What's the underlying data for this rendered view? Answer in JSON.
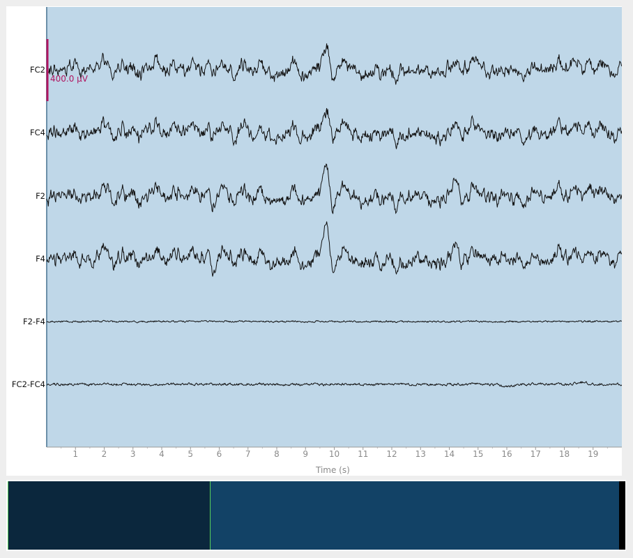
{
  "plot": {
    "background": "#bfd7e8",
    "trace_color": "#111111",
    "scalebar_color": "#b01560",
    "scalebar_label": "400.0 µV",
    "xlabel": "Time (s)",
    "xticks": [
      "1",
      "2",
      "3",
      "4",
      "5",
      "6",
      "7",
      "8",
      "9",
      "10",
      "11",
      "12",
      "13",
      "14",
      "15",
      "16",
      "17",
      "18",
      "19"
    ]
  },
  "channels": [
    {
      "name": "FC2"
    },
    {
      "name": "FC4"
    },
    {
      "name": "F2"
    },
    {
      "name": "F4"
    },
    {
      "name": "F2-F4"
    },
    {
      "name": "FC2-FC4"
    }
  ],
  "overview": {
    "background": "#124266",
    "window_color": "#0b273d",
    "window_edge_color": "#57d05a"
  }
}
